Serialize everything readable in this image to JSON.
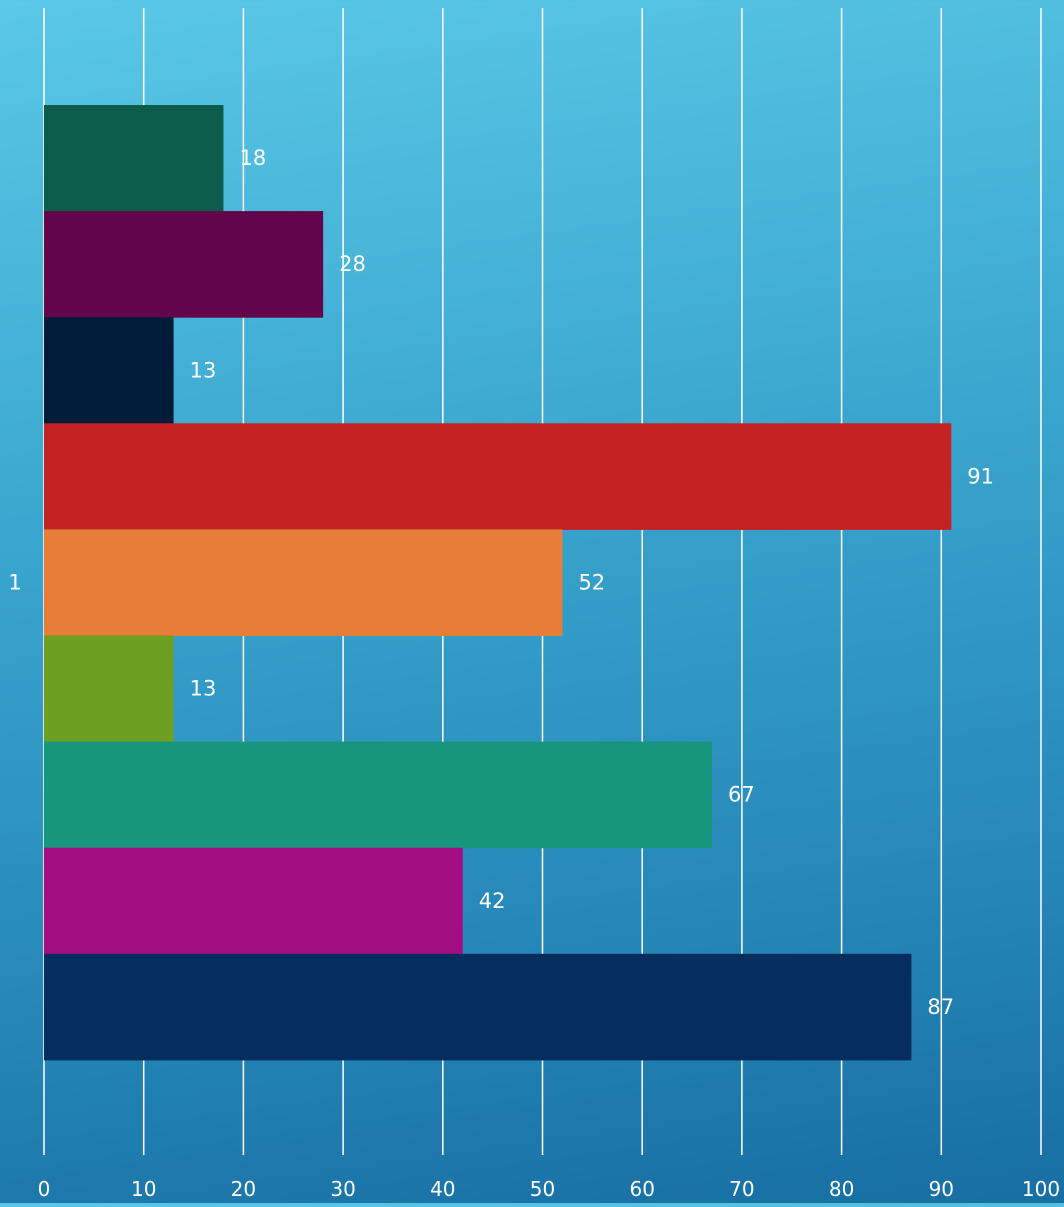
{
  "chart_data": {
    "type": "bar",
    "orientation": "horizontal",
    "categories": [
      "1"
    ],
    "xlim": [
      0,
      100
    ],
    "x_ticks": [
      "0",
      "10",
      "20",
      "30",
      "40",
      "50",
      "60",
      "70",
      "80",
      "90",
      "100"
    ],
    "grid": true,
    "legend": "none",
    "title": "",
    "xlabel": "",
    "ylabel": "",
    "series": [
      {
        "value": 18,
        "label": "18",
        "color": "#0b5c4b"
      },
      {
        "value": 28,
        "label": "28",
        "color": "#62054a"
      },
      {
        "value": 13,
        "label": "13",
        "color": "#011c38"
      },
      {
        "value": 91,
        "label": "91",
        "color": "#c42123"
      },
      {
        "value": 52,
        "label": "52",
        "color": "#e77e38"
      },
      {
        "value": 13,
        "label": "13",
        "color": "#6c9f22"
      },
      {
        "value": 67,
        "label": "67",
        "color": "#16977c"
      },
      {
        "value": 42,
        "label": "42",
        "color": "#a20e82"
      },
      {
        "value": 87,
        "label": "87",
        "color": "#052d5e"
      }
    ]
  }
}
